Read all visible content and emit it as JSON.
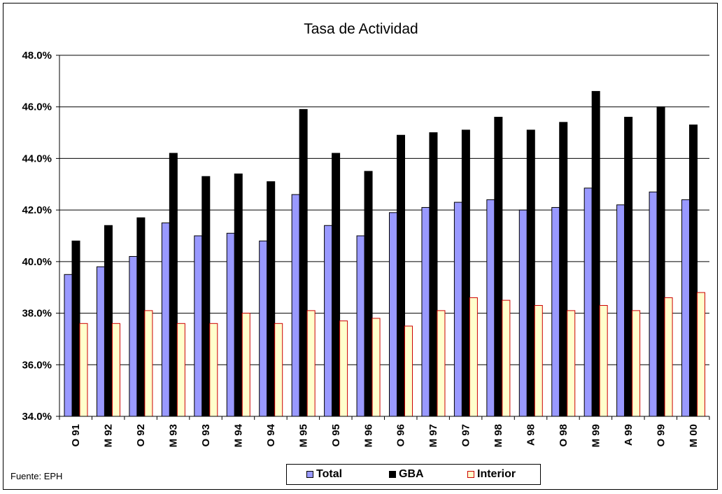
{
  "chart_data": {
    "type": "bar",
    "title": "Tasa de Actividad",
    "categories": [
      "O 91",
      "M 92",
      "O 92",
      "M 93",
      "O 93",
      "M 94",
      "O 94",
      "M 95",
      "O 95",
      "M 96",
      "O 96",
      "M 97",
      "O 97",
      "M 98",
      "A 98",
      "O 98",
      "M 99",
      "A 99",
      "O 99",
      "M 00"
    ],
    "series": [
      {
        "name": "Total",
        "color": "#9999ff",
        "values": [
          39.5,
          39.8,
          40.2,
          41.5,
          41.0,
          41.1,
          40.8,
          42.6,
          41.4,
          41.0,
          41.9,
          42.1,
          42.3,
          42.4,
          42.0,
          42.1,
          42.85,
          42.2,
          42.7,
          42.4
        ]
      },
      {
        "name": "GBA",
        "color": "#000000",
        "values": [
          40.8,
          41.4,
          41.7,
          44.2,
          43.3,
          43.4,
          43.1,
          45.9,
          44.2,
          43.5,
          44.9,
          45.0,
          45.1,
          45.6,
          45.1,
          45.4,
          46.6,
          45.6,
          46.0,
          45.3
        ]
      },
      {
        "name": "Interior",
        "color": "#ffffcc",
        "stroke": "#cc0000",
        "values": [
          37.6,
          37.6,
          38.1,
          37.6,
          37.6,
          38.0,
          37.6,
          38.1,
          37.7,
          37.8,
          37.5,
          38.1,
          38.6,
          38.5,
          38.3,
          38.1,
          38.3,
          38.1,
          38.6,
          38.8
        ]
      }
    ],
    "yticks": [
      "34.0%",
      "36.0%",
      "38.0%",
      "40.0%",
      "42.0%",
      "44.0%",
      "46.0%",
      "48.0%"
    ],
    "ylim": [
      34,
      48
    ],
    "grid": true,
    "legend_position": "bottom"
  },
  "source_note": "Fuente: EPH"
}
